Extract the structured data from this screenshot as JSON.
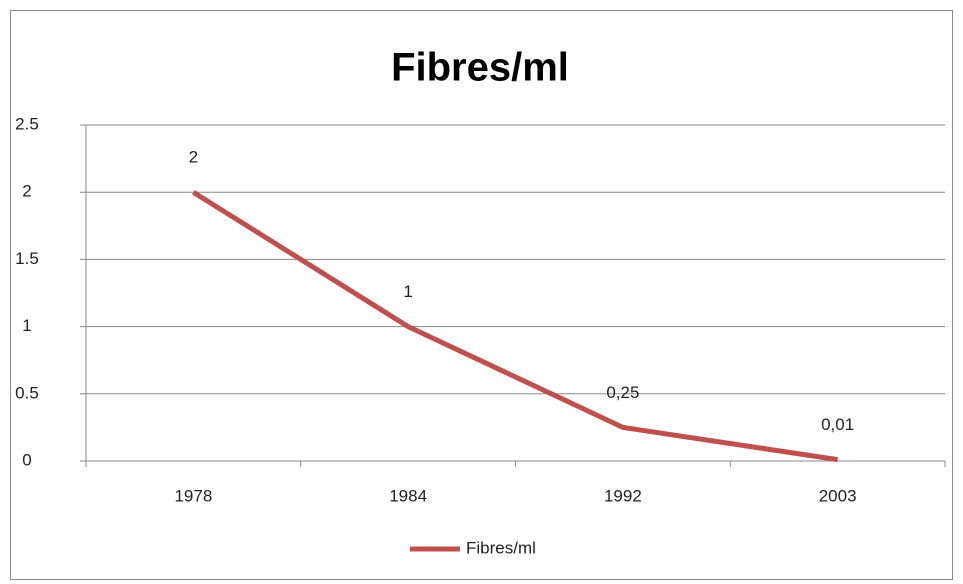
{
  "chart_data": {
    "type": "line",
    "title": "Fibres/ml",
    "categories": [
      "1978",
      "1984",
      "1992",
      "2003"
    ],
    "series": [
      {
        "name": "Fibres/ml",
        "color": "#c0504d",
        "values": [
          2,
          1,
          0.25,
          0.01
        ],
        "value_labels": [
          "2",
          "1",
          "0,25",
          "0,01"
        ]
      }
    ],
    "ylim": [
      0,
      2.5
    ],
    "yticks": [
      0,
      0.5,
      1,
      1.5,
      2,
      2.5
    ],
    "grid": true,
    "legend": "bottom"
  }
}
